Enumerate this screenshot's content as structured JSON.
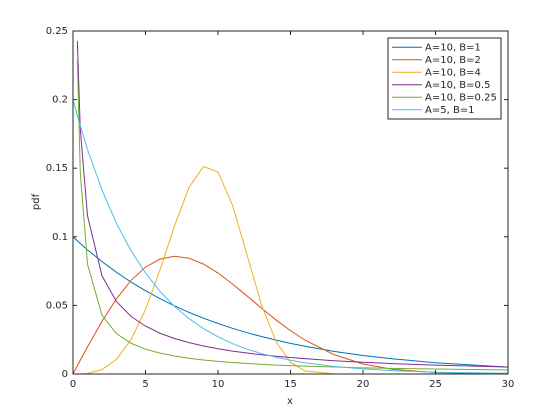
{
  "chart_data": {
    "type": "line",
    "xlabel": "x",
    "ylabel": "pdf",
    "x": [
      0,
      0.3,
      0.5,
      1,
      2,
      3,
      4,
      5,
      6,
      7,
      8,
      9,
      10,
      11,
      12,
      13,
      14,
      15,
      16,
      18,
      20,
      22,
      25,
      30
    ],
    "series": [
      {
        "name": "A=10, B=1",
        "color": "#0072bd",
        "values": [
          0.1,
          0.097,
          0.0951,
          0.0905,
          0.0819,
          0.0741,
          0.067,
          0.0607,
          0.0549,
          0.0497,
          0.0449,
          0.0407,
          0.0368,
          0.0333,
          0.0301,
          0.0273,
          0.0247,
          0.0223,
          0.0202,
          0.0165,
          0.0135,
          0.0111,
          0.0082,
          0.005
        ]
      },
      {
        "name": "A=10, B=2",
        "color": "#d95319",
        "values": [
          0,
          0.006,
          0.01,
          0.0198,
          0.0384,
          0.0548,
          0.0682,
          0.0779,
          0.0837,
          0.0858,
          0.0844,
          0.0801,
          0.0736,
          0.0656,
          0.0569,
          0.048,
          0.0394,
          0.0316,
          0.0247,
          0.0141,
          0.0073,
          0.0035,
          0.001,
          0.0001
        ]
      },
      {
        "name": "A=10, B=4",
        "color": "#edb120",
        "values": [
          0,
          1e-05,
          5e-05,
          0.0004,
          0.0032,
          0.0107,
          0.025,
          0.047,
          0.0759,
          0.1079,
          0.136,
          0.1513,
          0.1472,
          0.1231,
          0.0869,
          0.0505,
          0.0236,
          0.0085,
          0.0023,
          0.0001,
          0,
          0,
          0,
          0
        ]
      },
      {
        "name": "A=10, B=0.5",
        "color": "#7e2f8e",
        "values": [
          null,
          0.2428,
          0.1788,
          0.1153,
          0.0715,
          0.0528,
          0.042,
          0.0349,
          0.0297,
          0.0259,
          0.0229,
          0.0204,
          0.0184,
          0.0167,
          0.0153,
          0.014,
          0.0129,
          0.012,
          0.0112,
          0.0097,
          0.0086,
          0.0076,
          0.0065,
          0.0051
        ]
      },
      {
        "name": "A=10, B=0.25",
        "color": "#77ac30",
        "values": [
          null,
          0.2287,
          0.1474,
          0.0801,
          0.0428,
          0.0294,
          0.0224,
          0.0181,
          0.0152,
          0.0131,
          0.0115,
          0.0102,
          0.0092,
          0.0084,
          0.0077,
          0.0071,
          0.0065,
          0.0061,
          0.0057,
          0.0051,
          0.0045,
          0.0041,
          0.0036,
          0.0029
        ]
      },
      {
        "name": "A=5, B=1",
        "color": "#4dbeee",
        "values": [
          0.2,
          0.1884,
          0.181,
          0.1637,
          0.1341,
          0.1098,
          0.0899,
          0.0736,
          0.0602,
          0.0493,
          0.0404,
          0.0331,
          0.0271,
          0.0222,
          0.0181,
          0.0149,
          0.0122,
          0.01,
          0.0082,
          0.0055,
          0.0037,
          0.0025,
          0.0013,
          0.0005
        ]
      }
    ],
    "xlim": [
      0,
      30
    ],
    "xticks": [
      0,
      5,
      10,
      15,
      20,
      25,
      30
    ],
    "ylim": [
      0,
      0.25
    ],
    "yticks": [
      0,
      0.05,
      0.1,
      0.15,
      0.2,
      0.25
    ],
    "legend": "northeast",
    "grid": false
  }
}
